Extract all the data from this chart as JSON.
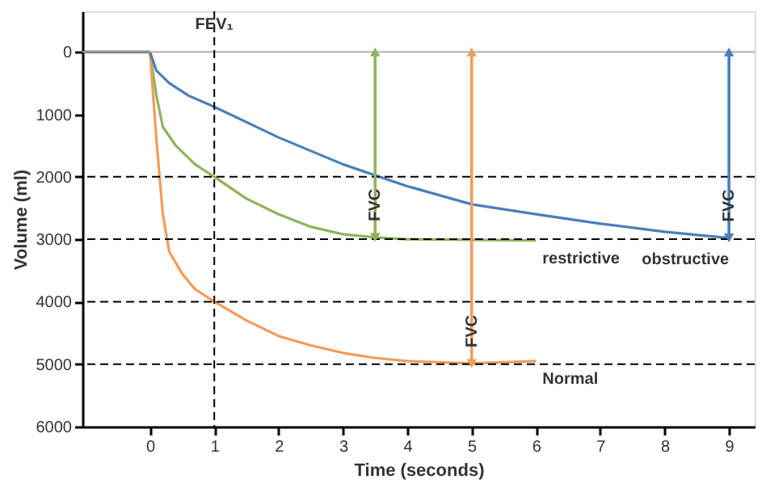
{
  "chart_data": {
    "type": "line",
    "xlabel": "Time (seconds)",
    "ylabel": "Volume (ml)",
    "xlim": [
      -1.05,
      9.4
    ],
    "xticks": [
      0,
      1,
      2,
      3,
      4,
      5,
      6,
      7,
      8,
      9
    ],
    "ylim": [
      6000,
      -650
    ],
    "yticks": [
      0,
      1000,
      2000,
      3000,
      4000,
      5000,
      6000
    ],
    "grid": false,
    "marker": "none",
    "line_style": "solid",
    "series": [
      {
        "color": "#000000",
        "x": [
          -1.05,
          0
        ],
        "values": [
          0,
          0
        ]
      },
      {
        "name": "restrictive",
        "color": "#8fb35a",
        "x": [
          0,
          0.1,
          0.2,
          0.4,
          0.7,
          1,
          1.5,
          2,
          2.5,
          3,
          3.5,
          4,
          5,
          6
        ],
        "values": [
          0,
          700,
          1200,
          1500,
          1800,
          2000,
          2350,
          2600,
          2800,
          2920,
          2970,
          3000,
          3010,
          3020
        ]
      },
      {
        "name": "Normal",
        "color": "#f29b5a",
        "x": [
          0,
          0.05,
          0.1,
          0.15,
          0.2,
          0.3,
          0.5,
          0.7,
          1,
          1.5,
          2,
          2.5,
          3,
          3.5,
          4,
          5,
          6
        ],
        "values": [
          0,
          700,
          1400,
          2000,
          2600,
          3200,
          3550,
          3800,
          4000,
          4300,
          4550,
          4700,
          4820,
          4900,
          4950,
          4990,
          4950
        ]
      },
      {
        "name": "obstructive",
        "color": "#4a7ebb",
        "x": [
          0,
          0.1,
          0.3,
          0.6,
          1,
          2,
          3,
          4,
          5,
          6,
          7,
          8,
          9
        ],
        "values": [
          0,
          300,
          500,
          700,
          880,
          1370,
          1800,
          2150,
          2440,
          2600,
          2750,
          2880,
          2980
        ]
      }
    ],
    "ref_lines": [
      {
        "axis": "y",
        "value": 0,
        "color": "#b0b0b0",
        "line_style": "solid"
      },
      {
        "axis": "x",
        "value": 1,
        "label": "FEV₁",
        "color": "#000000",
        "line_style": "dashed"
      },
      {
        "axis": "y",
        "value": 2000,
        "color": "#000000",
        "line_style": "dashed"
      },
      {
        "axis": "y",
        "value": 3000,
        "color": "#000000",
        "line_style": "dashed"
      },
      {
        "axis": "y",
        "value": 4000,
        "color": "#000000",
        "line_style": "dashed"
      },
      {
        "axis": "y",
        "value": 5000,
        "color": "#000000",
        "line_style": "dashed"
      }
    ],
    "annotations": [
      {
        "text": "FVC",
        "x": 3.5,
        "y": 2970
      },
      {
        "text": "FVC",
        "x": 5,
        "y": 4990
      },
      {
        "text": "FVC",
        "x": 9,
        "y": 2980
      }
    ]
  }
}
